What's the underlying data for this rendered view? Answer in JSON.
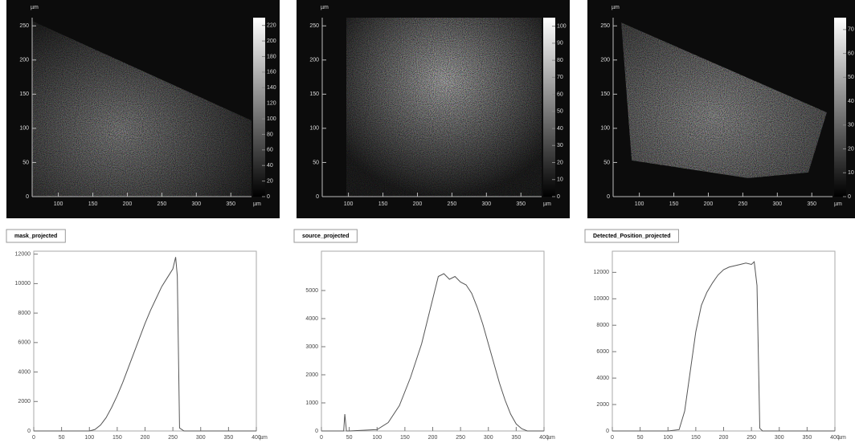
{
  "chart_data": [
    {
      "type": "heatmap",
      "x_label": "µm",
      "y_label": "µm",
      "xlim": [
        62,
        380
      ],
      "ylim": [
        0,
        262
      ],
      "xticks": [
        100,
        150,
        200,
        250,
        300,
        350
      ],
      "yticks": [
        0,
        50,
        100,
        150,
        200,
        250
      ],
      "zlim": [
        0,
        230
      ],
      "zticks": [
        0,
        20,
        40,
        60,
        80,
        100,
        120,
        140,
        160,
        180,
        200,
        220
      ]
    },
    {
      "type": "heatmap",
      "x_label": "µm",
      "y_label": "µm",
      "xlim": [
        62,
        380
      ],
      "ylim": [
        0,
        262
      ],
      "xticks": [
        100,
        150,
        200,
        250,
        300,
        350
      ],
      "yticks": [
        0,
        50,
        100,
        150,
        200,
        250
      ],
      "zlim": [
        0,
        105
      ],
      "zticks": [
        0,
        10,
        20,
        30,
        40,
        50,
        60,
        70,
        80,
        90,
        100
      ]
    },
    {
      "type": "heatmap",
      "x_label": "µm",
      "y_label": "µm",
      "xlim": [
        62,
        380
      ],
      "ylim": [
        0,
        262
      ],
      "xticks": [
        100,
        150,
        200,
        250,
        300,
        350
      ],
      "yticks": [
        0,
        50,
        100,
        150,
        200,
        250
      ],
      "zlim": [
        0,
        75
      ],
      "zticks": [
        0,
        10,
        20,
        30,
        40,
        50,
        60,
        70
      ]
    },
    {
      "type": "line",
      "title": "mask_projected",
      "x_label": "µm",
      "xlim": [
        0,
        400
      ],
      "ylim": [
        0,
        12200
      ],
      "xticks": [
        0,
        50,
        100,
        150,
        200,
        250,
        300,
        350,
        400
      ],
      "yticks": [
        0,
        2000,
        4000,
        6000,
        8000,
        10000,
        12000
      ],
      "x": [
        0,
        50,
        100,
        110,
        120,
        130,
        140,
        150,
        160,
        170,
        180,
        190,
        200,
        210,
        220,
        230,
        240,
        250,
        255,
        258,
        262,
        270,
        300,
        400
      ],
      "values": [
        0,
        0,
        0,
        100,
        400,
        900,
        1600,
        2400,
        3300,
        4300,
        5300,
        6300,
        7300,
        8200,
        9000,
        9800,
        10400,
        11000,
        11800,
        10500,
        200,
        0,
        0,
        0
      ],
      "color": "#555555"
    },
    {
      "type": "line",
      "title": "source_projected",
      "x_label": "µm",
      "xlim": [
        0,
        400
      ],
      "ylim": [
        0,
        6400
      ],
      "xticks": [
        0,
        50,
        100,
        150,
        200,
        250,
        300,
        350,
        400
      ],
      "yticks": [
        0,
        1000,
        2000,
        3000,
        4000,
        5000
      ],
      "x": [
        0,
        35,
        40,
        42,
        45,
        50,
        100,
        120,
        140,
        160,
        180,
        190,
        200,
        210,
        220,
        230,
        240,
        250,
        260,
        270,
        280,
        290,
        300,
        310,
        320,
        330,
        340,
        350,
        360,
        370,
        400
      ],
      "values": [
        0,
        0,
        0,
        600,
        0,
        0,
        50,
        300,
        900,
        1900,
        3100,
        3900,
        4700,
        5500,
        5600,
        5400,
        5500,
        5300,
        5200,
        4900,
        4400,
        3800,
        3100,
        2400,
        1700,
        1100,
        600,
        250,
        80,
        0,
        0
      ],
      "color": "#555555"
    },
    {
      "type": "line",
      "title": "Detected_Position_projected",
      "x_label": "µm",
      "xlim": [
        0,
        400
      ],
      "ylim": [
        0,
        13600
      ],
      "xticks": [
        0,
        50,
        100,
        150,
        200,
        250,
        300,
        350,
        400
      ],
      "yticks": [
        0,
        2000,
        4000,
        6000,
        8000,
        10000,
        12000
      ],
      "x": [
        0,
        100,
        120,
        130,
        140,
        150,
        160,
        170,
        180,
        190,
        200,
        210,
        220,
        230,
        240,
        250,
        255,
        260,
        265,
        270,
        300,
        400
      ],
      "values": [
        0,
        0,
        100,
        1500,
        4500,
        7500,
        9500,
        10500,
        11200,
        11800,
        12200,
        12400,
        12500,
        12600,
        12700,
        12600,
        12800,
        11000,
        200,
        0,
        0,
        0
      ],
      "color": "#555555"
    }
  ]
}
